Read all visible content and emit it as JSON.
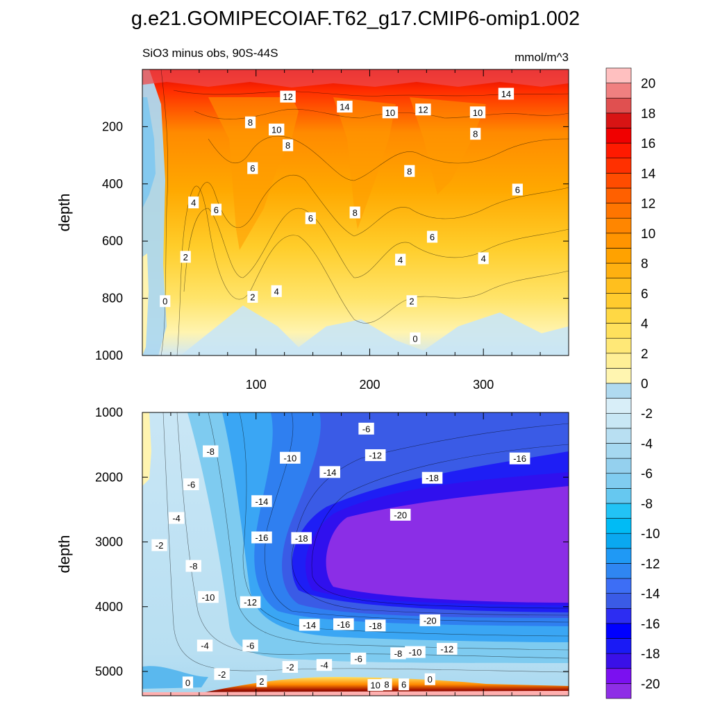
{
  "figure": {
    "title": "g.e21.GOMIPECOIAF.T62_g17.CMIP6-omip1.002",
    "subtitle_left": "SiO3 minus obs, 90S-44S",
    "subtitle_right": "mmol/m^3"
  },
  "chart_data": {
    "type": "heatmap",
    "variable": "SiO3 minus obs",
    "region": "90S-44S",
    "units": "mmol/m^3",
    "x_range": [
      0,
      375
    ],
    "x_ticks": [
      100,
      200,
      300
    ],
    "panels": [
      {
        "name": "upper",
        "ylabel": "depth",
        "ylim": [
          1000,
          0
        ],
        "y_ticks": [
          200,
          400,
          600,
          800,
          1000
        ],
        "contour_labels": [
          {
            "x": 20,
            "depth": 810,
            "text": "0"
          },
          {
            "x": 38,
            "depth": 655,
            "text": "2"
          },
          {
            "x": 45,
            "depth": 465,
            "text": "4"
          },
          {
            "x": 65,
            "depth": 490,
            "text": "6"
          },
          {
            "x": 95,
            "depth": 185,
            "text": "8"
          },
          {
            "x": 97,
            "depth": 345,
            "text": "6"
          },
          {
            "x": 97,
            "depth": 795,
            "text": "2"
          },
          {
            "x": 118,
            "depth": 210,
            "text": "10"
          },
          {
            "x": 128,
            "depth": 95,
            "text": "12"
          },
          {
            "x": 128,
            "depth": 265,
            "text": "8"
          },
          {
            "x": 118,
            "depth": 775,
            "text": "4"
          },
          {
            "x": 148,
            "depth": 520,
            "text": "6"
          },
          {
            "x": 178,
            "depth": 130,
            "text": "14"
          },
          {
            "x": 187,
            "depth": 500,
            "text": "8"
          },
          {
            "x": 218,
            "depth": 150,
            "text": "10"
          },
          {
            "x": 227,
            "depth": 665,
            "text": "4"
          },
          {
            "x": 235,
            "depth": 355,
            "text": "8"
          },
          {
            "x": 237,
            "depth": 810,
            "text": "2"
          },
          {
            "x": 240,
            "depth": 940,
            "text": "0"
          },
          {
            "x": 247,
            "depth": 140,
            "text": "12"
          },
          {
            "x": 255,
            "depth": 585,
            "text": "6"
          },
          {
            "x": 295,
            "depth": 150,
            "text": "10"
          },
          {
            "x": 293,
            "depth": 225,
            "text": "8"
          },
          {
            "x": 300,
            "depth": 660,
            "text": "4"
          },
          {
            "x": 320,
            "depth": 85,
            "text": "14"
          },
          {
            "x": 330,
            "depth": 420,
            "text": "6"
          }
        ]
      },
      {
        "name": "lower",
        "ylabel": "depth",
        "ylim": [
          5375,
          1000
        ],
        "y_ticks": [
          1000,
          2000,
          3000,
          4000,
          5000
        ],
        "contour_labels": [
          {
            "x": 15,
            "depth": 3050,
            "text": "-2"
          },
          {
            "x": 30,
            "depth": 2630,
            "text": "-4"
          },
          {
            "x": 43,
            "depth": 2110,
            "text": "-6"
          },
          {
            "x": 45,
            "depth": 3370,
            "text": "-8"
          },
          {
            "x": 58,
            "depth": 3850,
            "text": "-10"
          },
          {
            "x": 60,
            "depth": 1600,
            "text": "-8"
          },
          {
            "x": 55,
            "depth": 4600,
            "text": "-4"
          },
          {
            "x": 95,
            "depth": 4600,
            "text": "-6"
          },
          {
            "x": 95,
            "depth": 3930,
            "text": "-12"
          },
          {
            "x": 105,
            "depth": 2370,
            "text": "-14"
          },
          {
            "x": 105,
            "depth": 2930,
            "text": "-16"
          },
          {
            "x": 130,
            "depth": 1700,
            "text": "-10"
          },
          {
            "x": 140,
            "depth": 2940,
            "text": "-18"
          },
          {
            "x": 165,
            "depth": 1920,
            "text": "-14"
          },
          {
            "x": 147,
            "depth": 4280,
            "text": "-14"
          },
          {
            "x": 177,
            "depth": 4270,
            "text": "-16"
          },
          {
            "x": 197,
            "depth": 1250,
            "text": "-6"
          },
          {
            "x": 205,
            "depth": 1660,
            "text": "-12"
          },
          {
            "x": 205,
            "depth": 4290,
            "text": "-18"
          },
          {
            "x": 205,
            "depth": 5210,
            "text": "10"
          },
          {
            "x": 215,
            "depth": 5200,
            "text": "8"
          },
          {
            "x": 225,
            "depth": 4720,
            "text": "-8"
          },
          {
            "x": 227,
            "depth": 2580,
            "text": "-20"
          },
          {
            "x": 230,
            "depth": 5200,
            "text": "6"
          },
          {
            "x": 240,
            "depth": 4700,
            "text": "-10"
          },
          {
            "x": 253,
            "depth": 5120,
            "text": "0"
          },
          {
            "x": 253,
            "depth": 4210,
            "text": "-20"
          },
          {
            "x": 255,
            "depth": 2010,
            "text": "-18"
          },
          {
            "x": 268,
            "depth": 4650,
            "text": "-12"
          },
          {
            "x": 190,
            "depth": 4800,
            "text": "-6"
          },
          {
            "x": 160,
            "depth": 4900,
            "text": "-4"
          },
          {
            "x": 130,
            "depth": 4930,
            "text": "-2"
          },
          {
            "x": 105,
            "depth": 5150,
            "text": "2"
          },
          {
            "x": 70,
            "depth": 5040,
            "text": "-2"
          },
          {
            "x": 40,
            "depth": 5170,
            "text": "0"
          },
          {
            "x": 332,
            "depth": 1710,
            "text": "-16"
          }
        ]
      }
    ],
    "colorbar": {
      "labels": [
        "20",
        "18",
        "16",
        "14",
        "12",
        "10",
        "8",
        "6",
        "4",
        "2",
        "0",
        "-2",
        "-4",
        "-6",
        "-8",
        "-10",
        "-12",
        "-14",
        "-16",
        "-18",
        "-20"
      ],
      "min": -21,
      "max": 21,
      "step": 1,
      "colors": [
        "#8e2ee6",
        "#7b10f0",
        "#3a10e8",
        "#1a1af5",
        "#0000ff",
        "#2d2df2",
        "#3a5be6",
        "#3d6ef5",
        "#2f86f2",
        "#1f99f5",
        "#0aa8f0",
        "#00bbf5",
        "#22c3f5",
        "#66c8f0",
        "#80ccf0",
        "#94d0ee",
        "#a5d8f0",
        "#b8dff2",
        "#c8e7f5",
        "#d8eef8",
        "#b0daf0",
        "#fff5b0",
        "#ffef96",
        "#ffe877",
        "#ffe05c",
        "#ffd844",
        "#ffcb2e",
        "#ffbf1e",
        "#ffb010",
        "#ffa200",
        "#ff9400",
        "#ff8600",
        "#ff7500",
        "#ff6000",
        "#ff4c00",
        "#ff3000",
        "#ff1a00",
        "#f00000",
        "#d81414",
        "#e05050",
        "#f08080",
        "#ffc0c0"
      ]
    }
  }
}
